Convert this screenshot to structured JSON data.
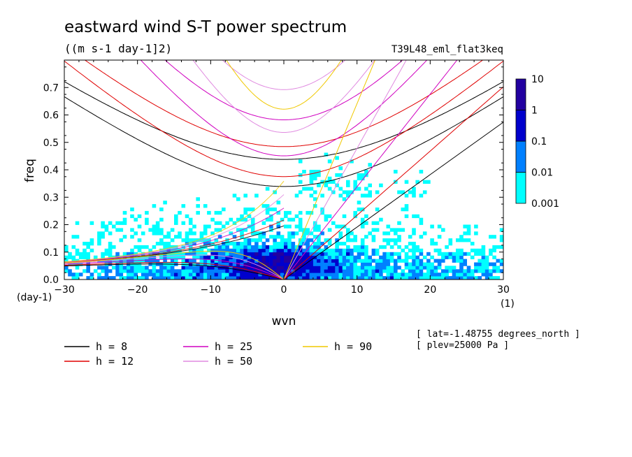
{
  "chart_data": {
    "type": "heatmap",
    "title": "eastward wind S-T power spectrum",
    "subtitle": "((m s-1 day-1]2)",
    "run_label": "T39L48_eml_flat3keq",
    "xlabel": "wvn",
    "ylabel": "freq",
    "x_unit": "(1)",
    "y_unit": "(day-1)",
    "xlim": [
      -30,
      30
    ],
    "ylim": [
      0,
      0.8
    ],
    "x_ticks": [
      "-30",
      "-20",
      "-10",
      "0",
      "10",
      "20",
      "30"
    ],
    "y_ticks": [
      "0.0",
      "0.1",
      "0.2",
      "0.3",
      "0.4",
      "0.5",
      "0.6",
      "0.7"
    ],
    "colorbar": {
      "levels": [
        "0.001",
        "0.01",
        "0.1",
        "1",
        "10"
      ],
      "colors": [
        "#00ffff",
        "#0080ff",
        "#0000cc",
        "#2200a0"
      ]
    },
    "dispersion_series": [
      {
        "name": "h =  8",
        "h": 8,
        "color": "#000000"
      },
      {
        "name": "h = 12",
        "h": 12,
        "color": "#e00000"
      },
      {
        "name": "h = 25",
        "h": 25,
        "color": "#d000c0"
      },
      {
        "name": "h = 50",
        "h": 50,
        "color": "#e08ae0"
      },
      {
        "name": "h = 90",
        "h": 90,
        "color": "#f0c800"
      }
    ],
    "annotations": [
      "[ lat=-1.48755 degrees_north ]",
      "[ plev=25000 Pa ]"
    ]
  }
}
